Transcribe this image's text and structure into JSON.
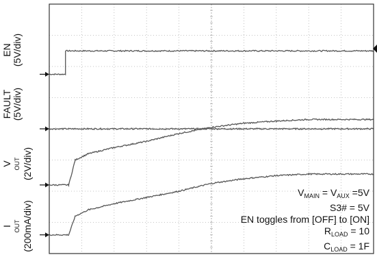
{
  "chart_data": {
    "type": "line",
    "title": "",
    "grid": true,
    "grid_divisions": {
      "x": 10,
      "y": 8
    },
    "channels": [
      {
        "name": "EN",
        "scale": "5V/div",
        "points": [
          [
            0,
            1.75
          ],
          [
            0.5,
            1.75
          ],
          [
            0.5,
            2.5
          ],
          [
            10,
            2.5
          ]
        ],
        "ground_level_div": 1.75
      },
      {
        "name": "FAULT",
        "scale": "5V/div",
        "points": [
          [
            0,
            0
          ],
          [
            10,
            0
          ]
        ],
        "ground_level_div": 0
      },
      {
        "name": "VOUT",
        "scale": "2V/div",
        "points": [
          [
            0,
            -1.8
          ],
          [
            0.6,
            -1.8
          ],
          [
            0.8,
            -1.0
          ],
          [
            1.2,
            -0.8
          ],
          [
            2,
            -0.6
          ],
          [
            3,
            -0.4
          ],
          [
            4,
            -0.15
          ],
          [
            5,
            0.05
          ],
          [
            6,
            0.18
          ],
          [
            7,
            0.25
          ],
          [
            8,
            0.3
          ],
          [
            10,
            0.3
          ]
        ],
        "ground_level_div": -1.8
      },
      {
        "name": "IOUT",
        "scale": "200mA/div",
        "points": [
          [
            0,
            -3.4
          ],
          [
            0.6,
            -3.4
          ],
          [
            0.8,
            -2.8
          ],
          [
            1.2,
            -2.6
          ],
          [
            2,
            -2.4
          ],
          [
            3,
            -2.2
          ],
          [
            4,
            -2.0
          ],
          [
            5,
            -1.75
          ],
          [
            6,
            -1.6
          ],
          [
            7,
            -1.5
          ],
          [
            8,
            -1.45
          ],
          [
            10,
            -1.45
          ]
        ],
        "ground_level_div": -3.4
      }
    ]
  },
  "labels": {
    "en": {
      "name": "EN",
      "scale": "(5V/div)"
    },
    "fault": {
      "name": "FAULT",
      "scale": "(5V/div)"
    },
    "vout": {
      "main": "V",
      "sub": "OUT",
      "scale": "(2V/div)"
    },
    "iout": {
      "main": "I",
      "sub": "OUT",
      "scale": "(200mA/div)"
    }
  },
  "notes": {
    "line1": {
      "v1": "V",
      "v1_sub": "MAIN",
      "eq1": " = V",
      "v2_sub": "AUX",
      "eq2": " =5V"
    },
    "line2": "S3# = 5V",
    "line3": "EN toggles from [OFF] to [ON]",
    "line4": {
      "r": "R",
      "r_sub": "LOAD",
      "val": " = 10"
    },
    "line5": {
      "c": "C",
      "c_sub": "LOAD",
      "val": " = 1F"
    }
  },
  "colors": {
    "trace": "#555555",
    "grid": "#b0b0b0",
    "frame": "#333333",
    "marker": "#111111"
  }
}
